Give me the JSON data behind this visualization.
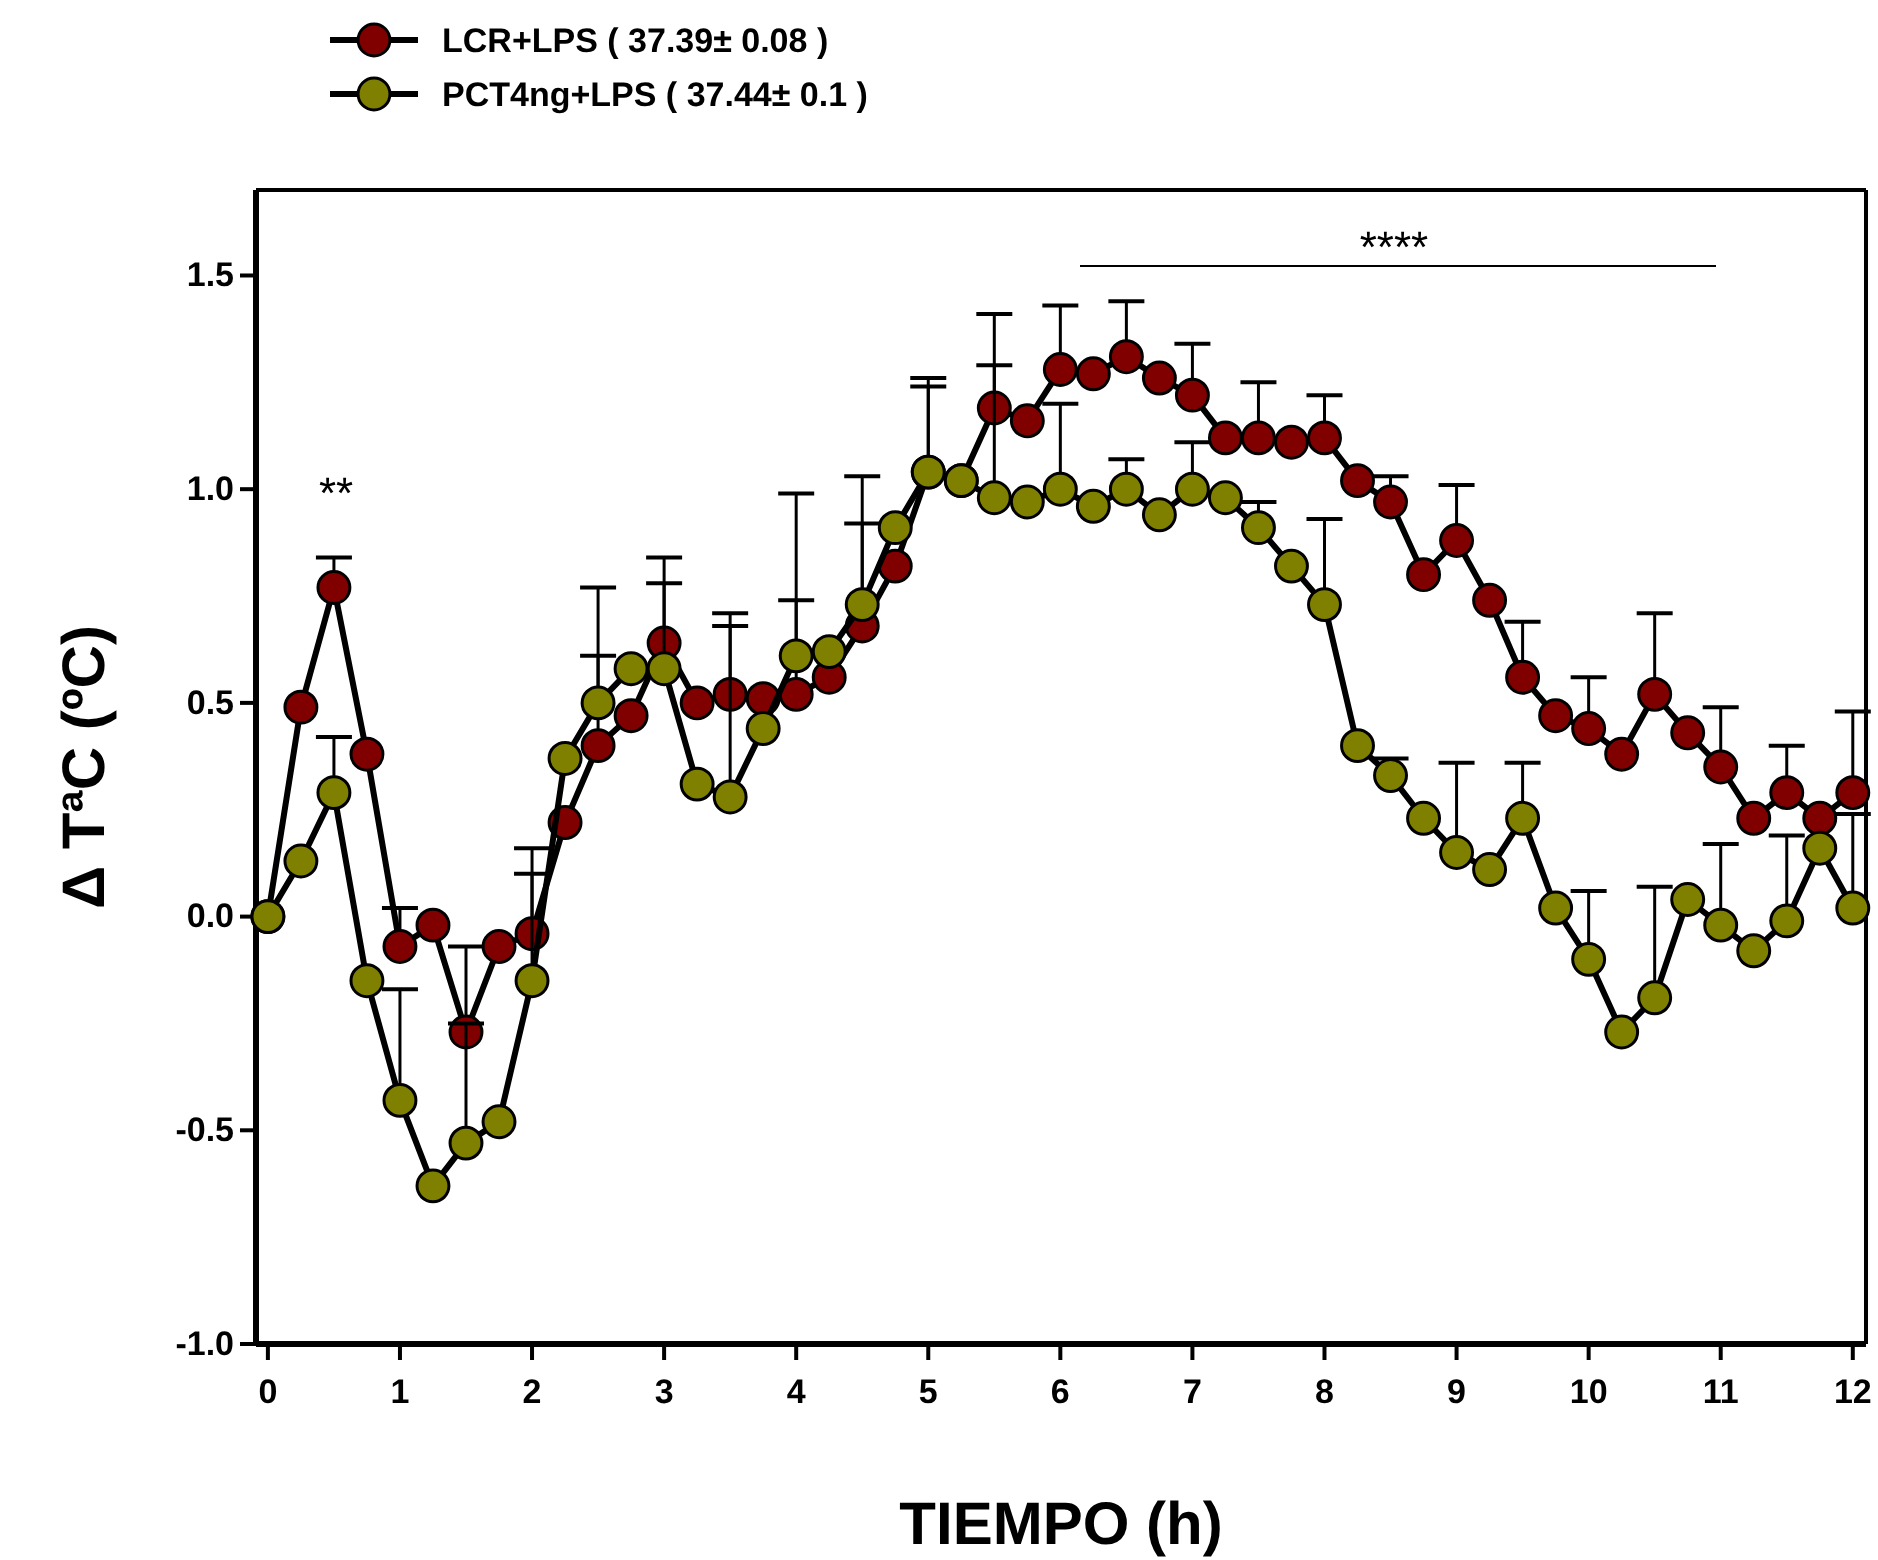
{
  "chart_data": {
    "type": "line",
    "xlabel": "TIEMPO (h)",
    "ylabel": "Δ TªC (ºC)",
    "x": [
      0,
      0.25,
      0.5,
      0.75,
      1,
      1.25,
      1.5,
      1.75,
      2,
      2.25,
      2.5,
      2.75,
      3,
      3.25,
      3.5,
      3.75,
      4,
      4.25,
      4.5,
      4.75,
      5,
      5.25,
      5.5,
      5.75,
      6,
      6.25,
      6.5,
      6.75,
      7,
      7.25,
      7.5,
      7.75,
      8,
      8.25,
      8.5,
      8.75,
      9,
      9.25,
      9.5,
      9.75,
      10,
      10.25,
      10.5,
      10.75,
      11,
      11.25,
      11.5,
      11.75,
      12
    ],
    "xlim": [
      -0.09,
      12.1
    ],
    "xticks": [
      0,
      1,
      2,
      3,
      4,
      5,
      6,
      7,
      8,
      9,
      10,
      11,
      12
    ],
    "ylim": [
      -1.0,
      1.7
    ],
    "yticks": [
      {
        "value": -1,
        "label": "-1.0"
      },
      {
        "value": -0.5,
        "label": "-0.5"
      },
      {
        "value": 0,
        "label": "0.0"
      },
      {
        "value": 0.5,
        "label": "0.5"
      },
      {
        "value": 1,
        "label": "1.0"
      },
      {
        "value": 1.5,
        "label": "1.5"
      }
    ],
    "marker": "circle",
    "line_style": "solid",
    "legend": "top left",
    "grid": false,
    "series": [
      {
        "name": "LCR+LPS ( 37.39± 0.08 )",
        "color": "#800000",
        "values": [
          0,
          0.49,
          0.77,
          0.38,
          -0.07,
          -0.02,
          -0.27,
          -0.07,
          -0.04,
          0.22,
          0.4,
          0.47,
          0.64,
          0.5,
          0.52,
          0.51,
          0.52,
          0.56,
          0.68,
          0.82,
          1.04,
          1.02,
          1.19,
          1.16,
          1.28,
          1.27,
          1.31,
          1.26,
          1.22,
          1.12,
          1.12,
          1.11,
          1.12,
          1.02,
          0.97,
          0.8,
          0.88,
          0.74,
          0.56,
          0.47,
          0.44,
          0.38,
          0.52,
          0.43,
          0.35,
          0.23,
          0.29,
          0.23,
          0.29
        ],
        "errors": [
          null,
          null,
          [
            0.77,
            0.84
          ],
          null,
          [
            -0.07,
            0.02
          ],
          null,
          [
            -0.27,
            -0.07
          ],
          null,
          [
            -0.04,
            0.16
          ],
          null,
          [
            0.4,
            0.77
          ],
          null,
          [
            0.64,
            0.84
          ],
          null,
          [
            0.52,
            0.71
          ],
          null,
          [
            0.52,
            0.99
          ],
          null,
          [
            0.68,
            1.03
          ],
          null,
          [
            1.04,
            1.26
          ],
          null,
          [
            1.19,
            1.41
          ],
          null,
          [
            1.28,
            1.43
          ],
          null,
          [
            1.31,
            1.44
          ],
          null,
          [
            1.22,
            1.34
          ],
          null,
          [
            1.12,
            1.25
          ],
          null,
          [
            1.12,
            1.22
          ],
          null,
          [
            0.97,
            1.03
          ],
          null,
          [
            0.88,
            1.01
          ],
          null,
          [
            0.56,
            0.69
          ],
          null,
          [
            0.44,
            0.56
          ],
          null,
          [
            0.52,
            0.71
          ],
          null,
          [
            0.35,
            0.49
          ],
          null,
          [
            0.29,
            0.4
          ],
          null,
          [
            0.29,
            0.48
          ]
        ]
      },
      {
        "name": "PCT4ng+LPS ( 37.44± 0.1 )",
        "color": "#808000",
        "values": [
          0,
          0.13,
          0.29,
          -0.15,
          -0.43,
          -0.63,
          -0.53,
          -0.48,
          -0.15,
          0.37,
          0.5,
          0.58,
          0.58,
          0.31,
          0.28,
          0.44,
          0.61,
          0.62,
          0.73,
          0.91,
          1.04,
          1.02,
          0.98,
          0.97,
          1.0,
          0.96,
          1.0,
          0.94,
          1.0,
          0.98,
          0.91,
          0.82,
          0.73,
          0.4,
          0.33,
          0.23,
          0.15,
          0.11,
          0.23,
          0.02,
          -0.1,
          -0.27,
          -0.19,
          0.04,
          -0.02,
          -0.08,
          -0.01,
          0.16,
          0.02
        ],
        "errors": [
          null,
          null,
          [
            0.29,
            0.42
          ],
          null,
          [
            -0.43,
            -0.17
          ],
          null,
          [
            -0.53,
            -0.25
          ],
          null,
          [
            -0.15,
            0.1
          ],
          null,
          [
            0.5,
            0.61
          ],
          null,
          [
            0.58,
            0.78
          ],
          null,
          [
            0.28,
            0.68
          ],
          null,
          [
            0.61,
            0.74
          ],
          null,
          [
            0.73,
            0.92
          ],
          null,
          [
            1.04,
            1.24
          ],
          null,
          [
            0.98,
            1.29
          ],
          null,
          [
            1.0,
            1.2
          ],
          null,
          [
            1.0,
            1.07
          ],
          null,
          [
            1.0,
            1.11
          ],
          null,
          [
            0.91,
            0.97
          ],
          null,
          [
            0.73,
            0.93
          ],
          null,
          [
            0.33,
            0.37
          ],
          null,
          [
            0.15,
            0.36
          ],
          null,
          [
            0.23,
            0.36
          ],
          null,
          [
            -0.1,
            0.06
          ],
          null,
          [
            -0.19,
            0.07
          ],
          null,
          [
            -0.02,
            0.17
          ],
          null,
          [
            -0.01,
            0.19
          ],
          null,
          [
            0.02,
            0.24
          ]
        ]
      }
    ],
    "annotations": [
      "**",
      "****"
    ]
  }
}
